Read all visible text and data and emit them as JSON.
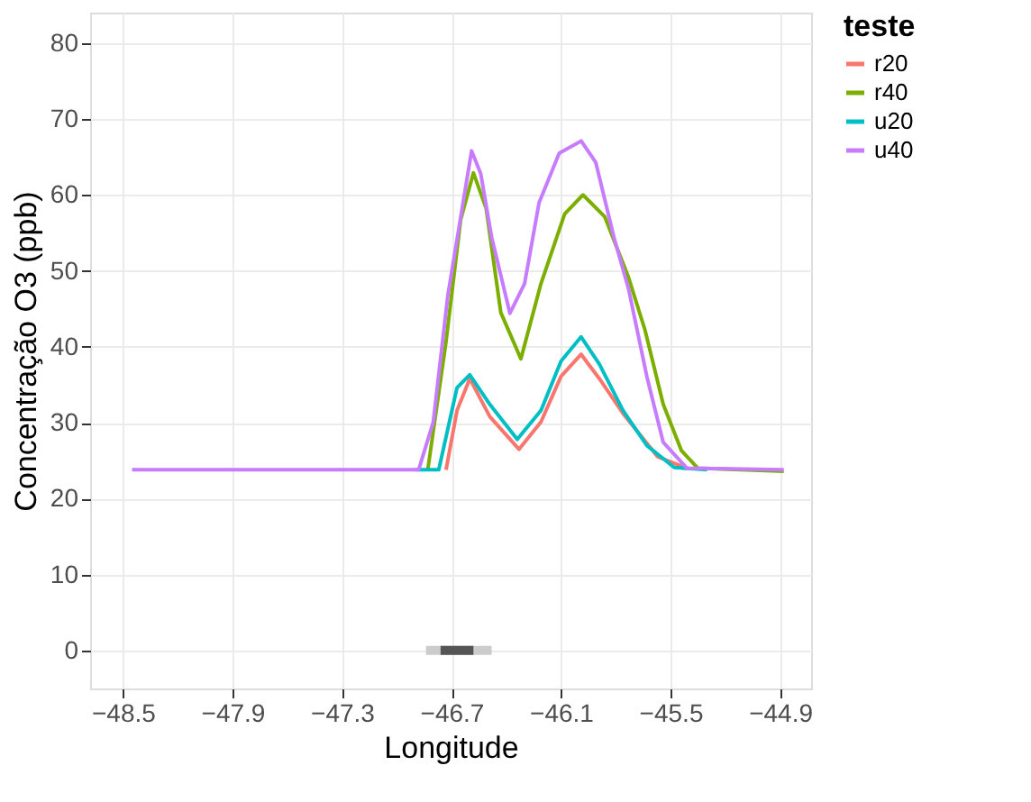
{
  "chart_data": {
    "type": "line",
    "xlabel": "Longitude",
    "ylabel": "Concentração O3 (ppb)",
    "legend_title": "teste",
    "xlim": [
      -48.68,
      -44.73
    ],
    "xticks": [
      -48.5,
      -47.9,
      -47.3,
      -46.7,
      -46.1,
      -45.5,
      -44.9
    ],
    "ylim": [
      -5,
      84
    ],
    "yticks": [
      0,
      10,
      20,
      30,
      40,
      50,
      60,
      70,
      80
    ],
    "grid": true,
    "legend": "right",
    "line_style": "solid",
    "marker": "none",
    "series": [
      {
        "name": "r20",
        "color": "#f8766d",
        "x": [
          -46.73,
          -46.67,
          -46.6,
          -46.49,
          -46.33,
          -46.21,
          -46.1,
          -45.99,
          -45.89,
          -45.76,
          -45.67,
          -45.57,
          -45.41
        ],
        "values": [
          23.8,
          31.6,
          35.8,
          30.8,
          26.5,
          30.1,
          36.1,
          39.0,
          35.8,
          31.2,
          28.5,
          25.5,
          24.0
        ]
      },
      {
        "name": "r40",
        "color": "#7cae00",
        "x": [
          -46.83,
          -46.73,
          -46.65,
          -46.58,
          -46.51,
          -46.43,
          -46.32,
          -46.21,
          -46.08,
          -45.98,
          -45.86,
          -45.73,
          -45.64,
          -45.54,
          -45.44,
          -45.35,
          -44.88
        ],
        "values": [
          23.8,
          40.7,
          56.7,
          62.9,
          58.2,
          44.5,
          38.4,
          48.3,
          57.5,
          60.0,
          57.1,
          49.1,
          42.2,
          32.4,
          26.3,
          24.0,
          23.6
        ]
      },
      {
        "name": "u20",
        "color": "#00bfc4",
        "x": [
          -46.9,
          -46.77,
          -46.67,
          -46.6,
          -46.49,
          -46.34,
          -46.21,
          -46.1,
          -45.99,
          -45.89,
          -45.76,
          -45.63,
          -45.48,
          -45.3
        ],
        "values": [
          23.8,
          23.8,
          34.6,
          36.3,
          32.4,
          27.8,
          31.6,
          38.1,
          41.3,
          37.7,
          31.6,
          27.0,
          24.1,
          23.8
        ]
      },
      {
        "name": "u40",
        "color": "#c77cff",
        "x": [
          -48.45,
          -46.88,
          -46.8,
          -46.72,
          -46.59,
          -46.54,
          -46.48,
          -46.38,
          -46.3,
          -46.22,
          -46.11,
          -45.99,
          -45.91,
          -45.81,
          -45.73,
          -45.63,
          -45.54,
          -45.41,
          -44.88
        ],
        "values": [
          23.8,
          23.8,
          30.1,
          46.8,
          65.8,
          62.8,
          54.4,
          44.4,
          48.3,
          59.0,
          65.5,
          67.1,
          64.3,
          54.4,
          47.6,
          36.1,
          27.4,
          24.0,
          23.8
        ]
      },
      {
        "color": "#cccccc",
        "x": [
          -46.84,
          -46.48
        ],
        "values": [
          0,
          0
        ]
      },
      {
        "color": "#555555",
        "x": [
          -46.76,
          -46.58
        ],
        "values": [
          0,
          0
        ]
      }
    ]
  }
}
